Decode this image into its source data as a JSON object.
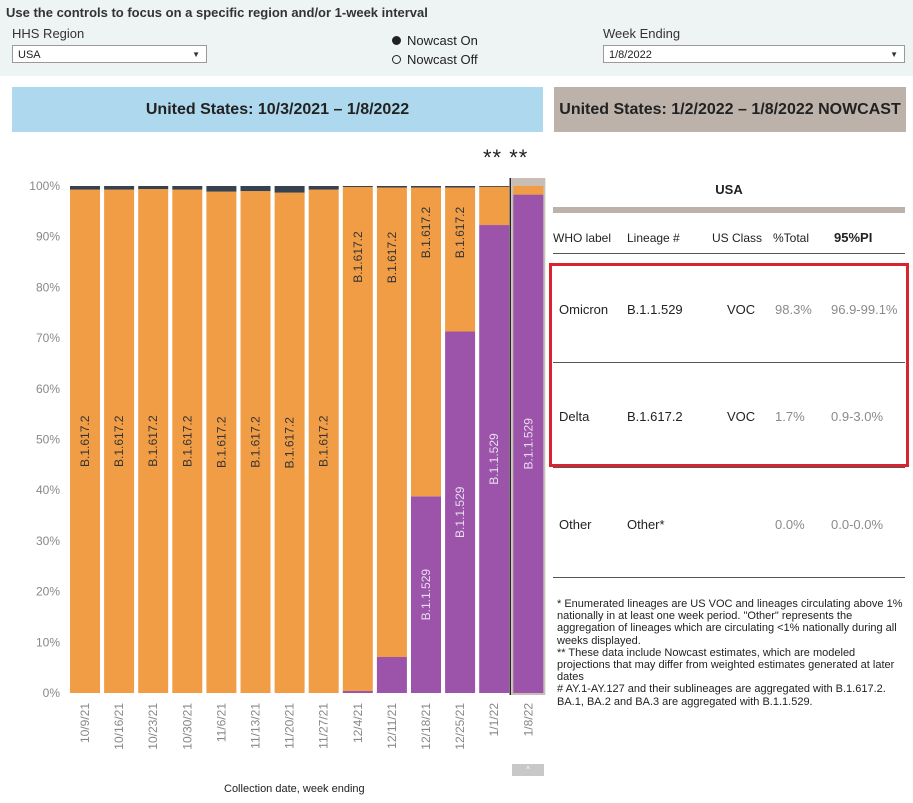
{
  "controls": {
    "instruction": "Use the controls to focus on a specific region and/or 1-week interval",
    "region_label": "HHS Region",
    "region_value": "USA",
    "nowcast_on": "Nowcast On",
    "nowcast_off": "Nowcast Off",
    "nowcast_selected": "on",
    "week_label": "Week Ending",
    "week_value": "1/8/2022"
  },
  "banners": {
    "left": "United States: 10/3/2021 – 1/8/2022",
    "right": "United States: 1/2/2022 – 1/8/2022 NOWCAST"
  },
  "stars_text": "** **",
  "x_axis_title": "Collection date, week ending",
  "colors": {
    "delta": "#f19d45",
    "omicron": "#9b54aa",
    "other": "#36424f",
    "left_banner": "#aed8ed",
    "right_banner": "#bdb2aa",
    "highlight": "#d9232e"
  },
  "chart_data": {
    "type": "bar",
    "stacked": true,
    "percent_scale": true,
    "categories": [
      "10/9/21",
      "10/16/21",
      "10/23/21",
      "10/30/21",
      "11/6/21",
      "11/13/21",
      "11/20/21",
      "11/27/21",
      "12/4/21",
      "12/11/21",
      "12/18/21",
      "12/25/21",
      "1/1/22",
      "1/8/22"
    ],
    "series": [
      {
        "name": "B.1.1.529",
        "color": "#9b54aa",
        "values": [
          0,
          0,
          0,
          0,
          0,
          0,
          0,
          0,
          0.4,
          7.1,
          38.8,
          71.3,
          92.3,
          98.3
        ]
      },
      {
        "name": "B.1.617.2",
        "color": "#f19d45",
        "values": [
          99.3,
          99.3,
          99.4,
          99.3,
          98.9,
          99.0,
          98.7,
          99.3,
          99.4,
          92.6,
          60.9,
          28.4,
          7.6,
          1.7
        ]
      },
      {
        "name": "Other",
        "color": "#36424f",
        "values": [
          0.7,
          0.7,
          0.6,
          0.7,
          1.1,
          1.0,
          1.3,
          0.7,
          0.2,
          0.3,
          0.3,
          0.3,
          0.1,
          0.0
        ]
      }
    ],
    "bar_labels": [
      {
        "omicron": "",
        "delta": "B.1.617.2"
      },
      {
        "omicron": "",
        "delta": "B.1.617.2"
      },
      {
        "omicron": "",
        "delta": "B.1.617.2"
      },
      {
        "omicron": "",
        "delta": "B.1.617.2"
      },
      {
        "omicron": "",
        "delta": "B.1.617.2"
      },
      {
        "omicron": "",
        "delta": "B.1.617.2"
      },
      {
        "omicron": "",
        "delta": "B.1.617.2"
      },
      {
        "omicron": "",
        "delta": "B.1.617.2"
      },
      {
        "omicron": "",
        "delta": "B.1.617.2"
      },
      {
        "omicron": "",
        "delta": "B.1.617.2"
      },
      {
        "omicron": "B.1.1.529",
        "delta": "B.1.617.2"
      },
      {
        "omicron": "B.1.1.529",
        "delta": "B.1.617.2"
      },
      {
        "omicron": "B.1.1.529",
        "delta": ""
      },
      {
        "omicron": "B.1.1.529",
        "delta": ""
      }
    ],
    "nowcast_categories": [
      "1/1/22",
      "1/8/22"
    ],
    "selected_category": "1/8/22",
    "yticks": [
      "0%",
      "10%",
      "20%",
      "30%",
      "40%",
      "50%",
      "60%",
      "70%",
      "80%",
      "90%",
      "100%"
    ],
    "ylim": [
      0,
      100
    ],
    "xlabel": "Collection date, week ending",
    "ylabel": "",
    "grid": false
  },
  "table": {
    "title": "USA",
    "headers": [
      "WHO label",
      "Lineage #",
      "US Class",
      "%Total",
      "95%PI"
    ],
    "rows": [
      {
        "who": "Omicron",
        "lineage": "B.1.1.529",
        "class": "VOC",
        "total": "98.3%",
        "pi": "96.9-99.1%"
      },
      {
        "who": "Delta",
        "lineage": "B.1.617.2",
        "class": "VOC",
        "total": "1.7%",
        "pi": "0.9-3.0%"
      },
      {
        "who": "Other",
        "lineage": "Other*",
        "class": "",
        "total": "0.0%",
        "pi": "0.0-0.0%"
      }
    ]
  },
  "footnotes": [
    "*      Enumerated lineages are US VOC and lineages circulating above 1% nationally in at least one week period. \"Other\" represents the aggregation of lineages which are circulating <1% nationally during all weeks displayed.",
    "**      These data include Nowcast estimates, which are modeled projections that may differ from weighted estimates generated at later dates",
    "#      AY.1-AY.127 and their sublineages are aggregated with B.1.617.2. BA.1, BA.2 and BA.3 are aggregated with B.1.1.529."
  ],
  "scroll_glyph": "^"
}
